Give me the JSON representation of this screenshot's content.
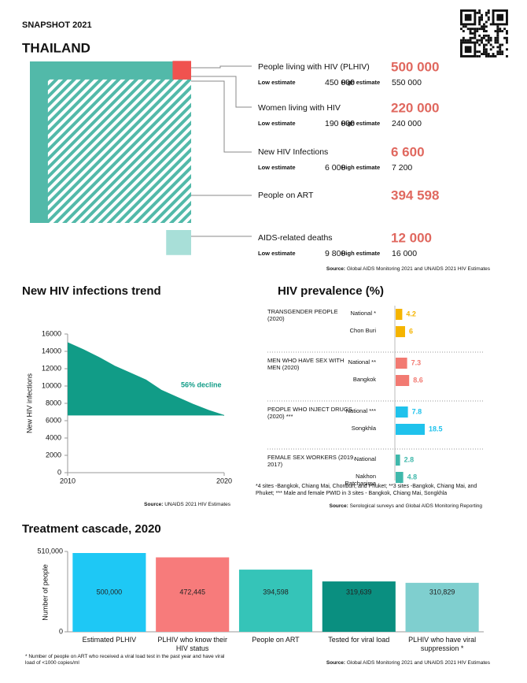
{
  "header": {
    "kicker": "SNAPSHOT 2021",
    "title": "THAILAND"
  },
  "indicators": {
    "low_label": "Low estimate",
    "high_label": "High estimate",
    "items": [
      {
        "label": "People living with HIV (PLHIV)",
        "value": {
          "value": 500000,
          "label": "500 000"
        },
        "low": "450 000",
        "high": "550 000",
        "color": "#52b9a9"
      },
      {
        "label": "Women living with HIV",
        "value": {
          "value": 220000,
          "label": "220 000"
        },
        "low": "190 000",
        "high": "240 000"
      },
      {
        "label": "New HIV Infections",
        "value": {
          "value": 6600,
          "label": "6 600"
        },
        "low": "6 000",
        "high": "7 200",
        "color": "#f0524f"
      },
      {
        "label": "People on ART",
        "value": {
          "value": 394598,
          "label": "394 598"
        },
        "color": "#52b9a9",
        "hatch": true
      },
      {
        "label": "AIDS-related deaths",
        "value": {
          "value": 12000,
          "label": "12 000"
        },
        "low": "9 800",
        "high": "16 000",
        "color": "#a8dfd8"
      }
    ],
    "source_label": "Source:",
    "source": "Global AIDS Monitoring 2021 and UNAIDS 2021 HIV Estimates"
  },
  "chart_data": [
    {
      "type": "area",
      "title": "New HIV infections trend",
      "y_label": "New HIV infections",
      "x": [
        2010,
        2011,
        2012,
        2013,
        2014,
        2015,
        2016,
        2017,
        2018,
        2019,
        2020
      ],
      "values": [
        15000,
        14200,
        13300,
        12300,
        11500,
        10700,
        9500,
        8700,
        7900,
        7200,
        6600
      ],
      "color": "#119c87",
      "xlim": [
        2010,
        2020
      ],
      "xticks": [
        2010,
        2020
      ],
      "ylim": [
        0,
        16000
      ],
      "yticks": [
        0,
        2000,
        4000,
        6000,
        8000,
        10000,
        12000,
        14000,
        16000
      ],
      "annotation": "56% decline",
      "source_label": "Source:",
      "source": "UNAIDS 2021 HIV Estimates"
    },
    {
      "type": "bar",
      "orientation": "horizontal",
      "title": "HIV prevalence (%)",
      "groups": [
        {
          "label": "TRANSGENDER PEOPLE (2020)",
          "color": "#f5b400",
          "categories": [
            "National *",
            "Chon Buri"
          ],
          "values": [
            4.2,
            6
          ]
        },
        {
          "label": "MEN WHO HAVE SEX WITH MEN (2020)",
          "color": "#f27a72",
          "categories": [
            "National **",
            "Bangkok"
          ],
          "values": [
            7.3,
            8.6
          ]
        },
        {
          "label": "PEOPLE WHO INJECT DRUGS (2020) ***",
          "color": "#1fc2ec",
          "categories": [
            "National ***",
            "Songkhla"
          ],
          "values": [
            7.8,
            18.5
          ]
        },
        {
          "label": "FEMALE SEX WORKERS (2019, 2017)",
          "color": "#3fb8ab",
          "categories": [
            "National",
            "Nakhon Ratchasima"
          ],
          "values": [
            2.8,
            4.8
          ]
        }
      ],
      "footnote": "*4 sites -Bangkok, Chiang Mai, Chonburi, and Phuket; **3 sites -Bangkok, Chiang Mai, and Phuket;   *** Male and female PWID in 3 sites - Bangkok, Chiang Mai, Songkhla",
      "source_label": "Source:",
      "source": "Serological surveys and Global AIDS Monitoring Reporting"
    },
    {
      "type": "bar",
      "orientation": "vertical",
      "title": "Treatment cascade, 2020",
      "y_label": "Number of people",
      "categories": [
        "Estimated PLHIV",
        "PLHIV who know their HIV status",
        "People on ART",
        "Tested for viral load",
        "PLHIV who have viral suppression *"
      ],
      "values": [
        500000,
        472445,
        394598,
        319639,
        310829
      ],
      "value_labels": [
        "500,000",
        "472,445",
        "394,598",
        "319,639",
        "310,829"
      ],
      "colors": [
        "#1ec8f5",
        "#f77b7b",
        "#35c4b8",
        "#0a8f80",
        "#7fcfcf"
      ],
      "ylim": [
        0,
        510000
      ],
      "yticks": [
        0,
        {
          "value": 510000,
          "label": "510,000"
        }
      ],
      "footnote": "* Number of people on ART who received a viral load test in the past year and have viral load of <1000 copies/ml",
      "source_label": "Source:",
      "source": "Global AIDS Monitoring 2021 and UNAIDS 2021 HIV Estimates"
    }
  ]
}
